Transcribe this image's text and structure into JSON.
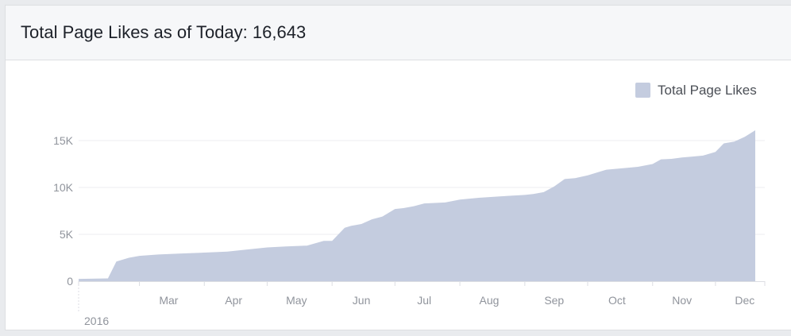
{
  "header": {
    "title": "Total Page Likes as of Today: 16,643"
  },
  "chart_data": {
    "type": "area",
    "title": "Total Page Likes as of Today: 16,643",
    "xlabel": "",
    "ylabel": "",
    "ylim": [
      0,
      15000
    ],
    "y_ticks": [
      0,
      5000,
      10000,
      15000
    ],
    "y_tick_labels": [
      "0",
      "5K",
      "10K",
      "15K"
    ],
    "x_tick_labels": [
      "Mar",
      "Apr",
      "May",
      "Jun",
      "Jul",
      "Aug",
      "Sep",
      "Oct",
      "Nov",
      "Dec"
    ],
    "year_label": "2016",
    "grid": true,
    "legend_position": "top-right",
    "colors": {
      "fill": "#c4ccdf",
      "legend_swatch": "#c4ccdf",
      "grid": "#eceef2",
      "axis": "#dcdee3",
      "tick_text": "#90949c",
      "legend_text": "#4b4f56"
    },
    "series": [
      {
        "name": "Total Page Likes",
        "x": [
          "2016-02-01",
          "2016-02-15",
          "2016-02-19",
          "2016-02-25",
          "2016-03-01",
          "2016-03-10",
          "2016-03-20",
          "2016-04-01",
          "2016-04-12",
          "2016-04-20",
          "2016-05-01",
          "2016-05-10",
          "2016-05-20",
          "2016-05-28",
          "2016-06-01",
          "2016-06-07",
          "2016-06-10",
          "2016-06-15",
          "2016-06-20",
          "2016-06-25",
          "2016-07-01",
          "2016-07-05",
          "2016-07-10",
          "2016-07-15",
          "2016-07-25",
          "2016-08-01",
          "2016-08-10",
          "2016-08-20",
          "2016-09-01",
          "2016-09-05",
          "2016-09-10",
          "2016-09-15",
          "2016-09-20",
          "2016-09-25",
          "2016-10-01",
          "2016-10-10",
          "2016-10-20",
          "2016-10-25",
          "2016-11-01",
          "2016-11-05",
          "2016-11-10",
          "2016-11-15",
          "2016-11-20",
          "2016-11-25",
          "2016-12-01",
          "2016-12-05",
          "2016-12-10",
          "2016-12-15",
          "2016-12-20"
        ],
        "values": [
          250,
          300,
          2100,
          2500,
          2700,
          2850,
          2950,
          3050,
          3150,
          3350,
          3600,
          3700,
          3800,
          4300,
          4300,
          5700,
          5900,
          6100,
          6600,
          6900,
          7700,
          7800,
          8000,
          8300,
          8400,
          8700,
          8900,
          9050,
          9200,
          9300,
          9500,
          10100,
          10900,
          11000,
          11300,
          11900,
          12100,
          12200,
          12500,
          13000,
          13050,
          13200,
          13300,
          13400,
          13800,
          14700,
          14900,
          15400,
          16100
        ]
      }
    ]
  }
}
